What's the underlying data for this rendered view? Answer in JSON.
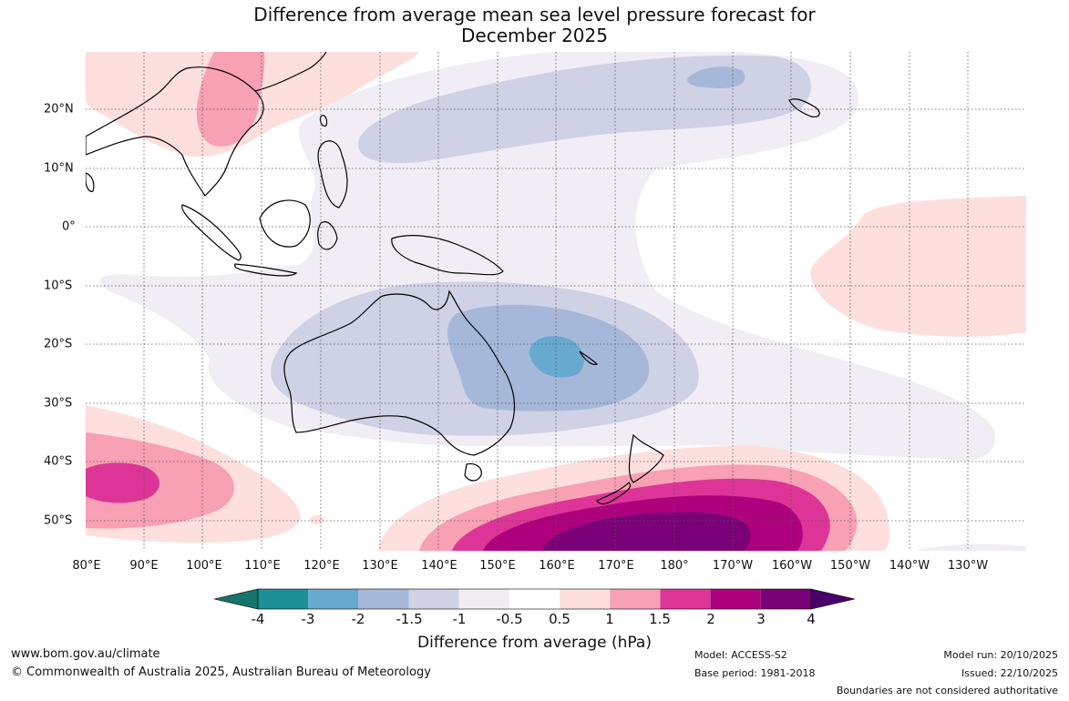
{
  "title_line1": "Difference from average mean sea level pressure forecast for",
  "title_line2": "December 2025",
  "lon_labels": [
    "80°E",
    "90°E",
    "100°E",
    "110°E",
    "120°E",
    "130°E",
    "140°E",
    "150°E",
    "160°E",
    "170°E",
    "180°",
    "170°W",
    "160°W",
    "150°W",
    "140°W",
    "130°W"
  ],
  "lat_labels": [
    "20°N",
    "10°N",
    "0°",
    "10°S",
    "20°S",
    "30°S",
    "40°S",
    "50°S"
  ],
  "colorbar": {
    "title": "Difference from average (hPa)",
    "ticks": [
      "-4",
      "-3",
      "-2",
      "-1.5",
      "-1",
      "-0.5",
      "0.5",
      "1",
      "1.5",
      "2",
      "3",
      "4"
    ],
    "colors": [
      "#17746a",
      "#1d8f97",
      "#67a9cf",
      "#a6b8da",
      "#cfd1e5",
      "#f1edf5",
      "#ffffff",
      "#fde0de",
      "#f8a0b4",
      "#dd3597",
      "#ae017e",
      "#7a0177",
      "#49006a"
    ]
  },
  "footer": {
    "url": "www.bom.gov.au/climate",
    "copyright": "© Commonwealth of Australia 2025, Australian Bureau of Meteorology",
    "model": "Model: ACCESS-S2",
    "base_period": "Base period: 1981-2018",
    "model_run": "Model run: 20/10/2025",
    "issued": "Issued: 22/10/2025",
    "disclaimer": "Boundaries are not considered authoritative"
  }
}
